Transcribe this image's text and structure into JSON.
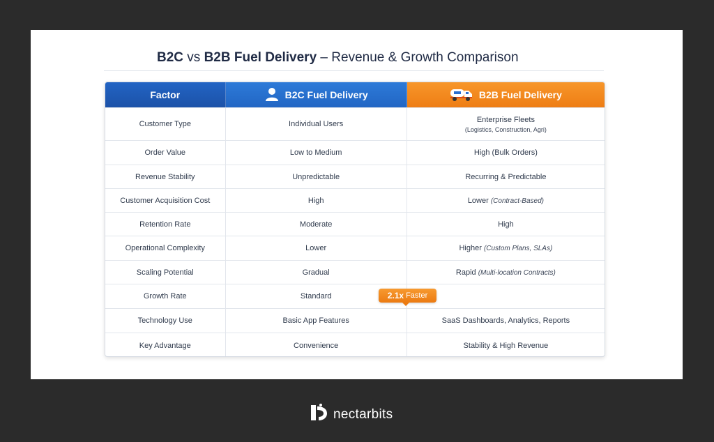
{
  "title": {
    "prefix": "B2C",
    "vs": " vs ",
    "bold": "B2B Fuel Delivery",
    "rest": " – Revenue & Growth Comparison"
  },
  "table": {
    "headers": [
      "Factor",
      "B2C Fuel Delivery",
      "B2B Fuel Delivery"
    ],
    "rows": [
      {
        "factor": "Customer Type",
        "b2c": "Individual Users",
        "b2b": "Enterprise Fleets",
        "b2b_sub": "(Logistics, Construction, Agri)"
      },
      {
        "factor": "Order Value",
        "b2c": "Low to Medium",
        "b2b": "High (Bulk Orders)"
      },
      {
        "factor": "Revenue Stability",
        "b2c": "Unpredictable",
        "b2b": "Recurring & Predictable"
      },
      {
        "factor": "Customer Acquisition Cost",
        "b2c": "High",
        "b2b": "Lower ",
        "b2b_note": "(Contract-Based)"
      },
      {
        "factor": "Retention Rate",
        "b2c": "Moderate",
        "b2b": "High"
      },
      {
        "factor": "Operational Complexity",
        "b2c": "Lower",
        "b2b": "Higher ",
        "b2b_note": "(Custom Plans, SLAs)"
      },
      {
        "factor": "Scaling Potential",
        "b2c": "Gradual",
        "b2b": "Rapid ",
        "b2b_note": "(Multi-location Contracts)"
      },
      {
        "factor": "Growth Rate",
        "b2c": "Standard",
        "b2b": ""
      },
      {
        "factor": "Technology Use",
        "b2c": "Basic App Features",
        "b2b": "SaaS Dashboards, Analytics, Reports"
      },
      {
        "factor": "Key Advantage",
        "b2c": "Convenience",
        "b2b": "Stability & High Revenue"
      }
    ]
  },
  "badge": {
    "value": "2.1x",
    "label": "Faster"
  },
  "brand": {
    "name": "nectarbits"
  },
  "colors": {
    "b2c_accent": "#2266c4",
    "b2b_accent": "#f08418",
    "background": "#2b2b2b"
  },
  "icons": {
    "b2c": "user-icon",
    "b2b": "fuel-truck-icon",
    "brand": "nectarbits-logo-icon"
  }
}
